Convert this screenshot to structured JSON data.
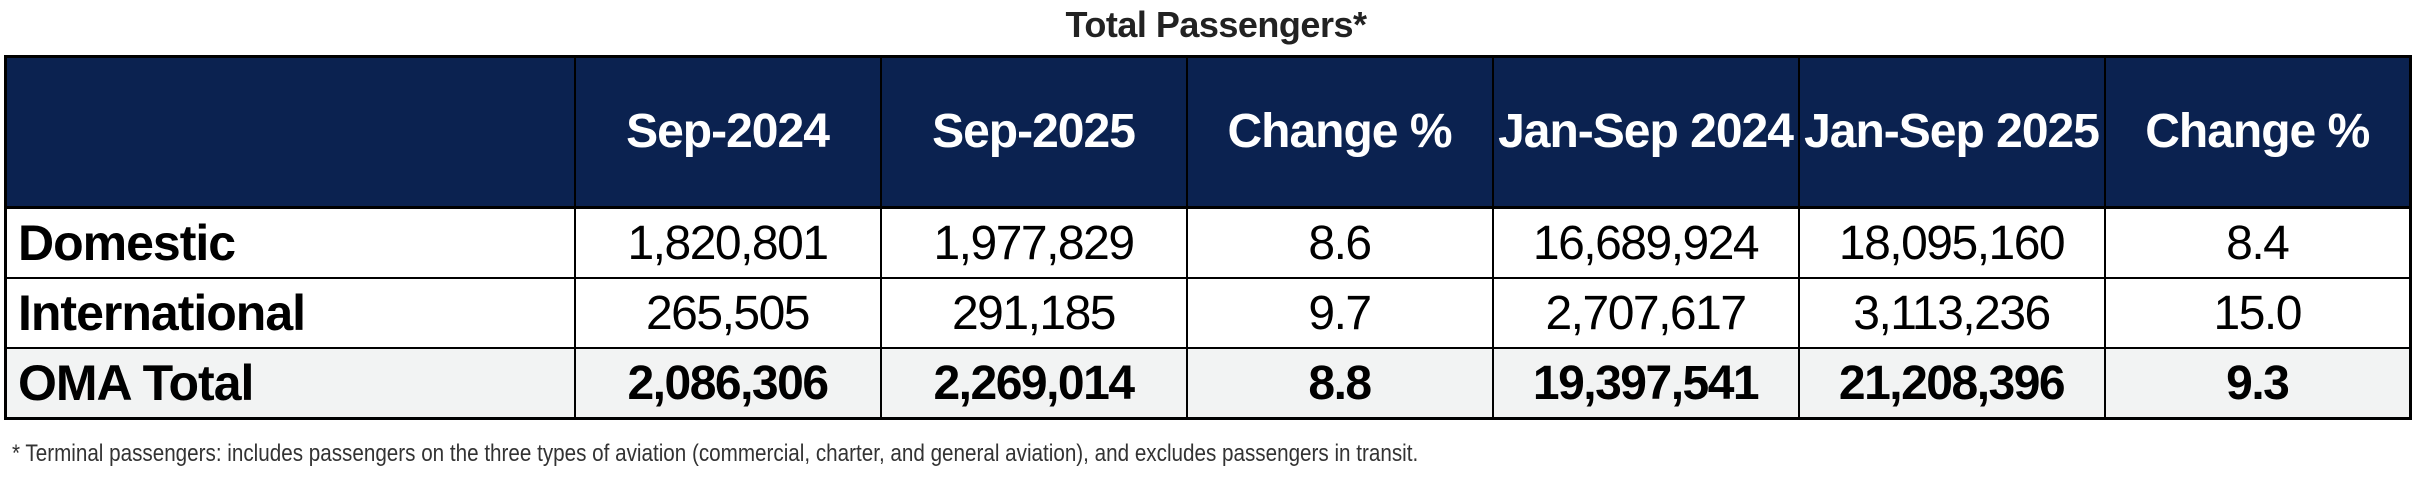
{
  "title": "Total Passengers*",
  "table": {
    "headers": [
      "",
      "Sep-2024",
      "Sep-2025",
      "Change %",
      "Jan-Sep 2024",
      "Jan-Sep 2025",
      "Change %"
    ],
    "rows": [
      {
        "label": "Domestic",
        "values": [
          "1,820,801",
          "1,977,829",
          "8.6",
          "16,689,924",
          "18,095,160",
          "8.4"
        ]
      },
      {
        "label": "International",
        "values": [
          "265,505",
          "291,185",
          "9.7",
          "2,707,617",
          "3,113,236",
          "15.0"
        ]
      },
      {
        "label": "OMA Total",
        "values": [
          "2,086,306",
          "2,269,014",
          "8.8",
          "19,397,541",
          "21,208,396",
          "9.3"
        ]
      }
    ]
  },
  "colors": {
    "header_bg": "#0b2250",
    "header_text": "#ffffff",
    "total_row_bg": "#f2f3f3"
  },
  "footnote": "* Terminal passengers: includes passengers on the three types of aviation (commercial, charter, and general aviation), and excludes passengers in transit."
}
